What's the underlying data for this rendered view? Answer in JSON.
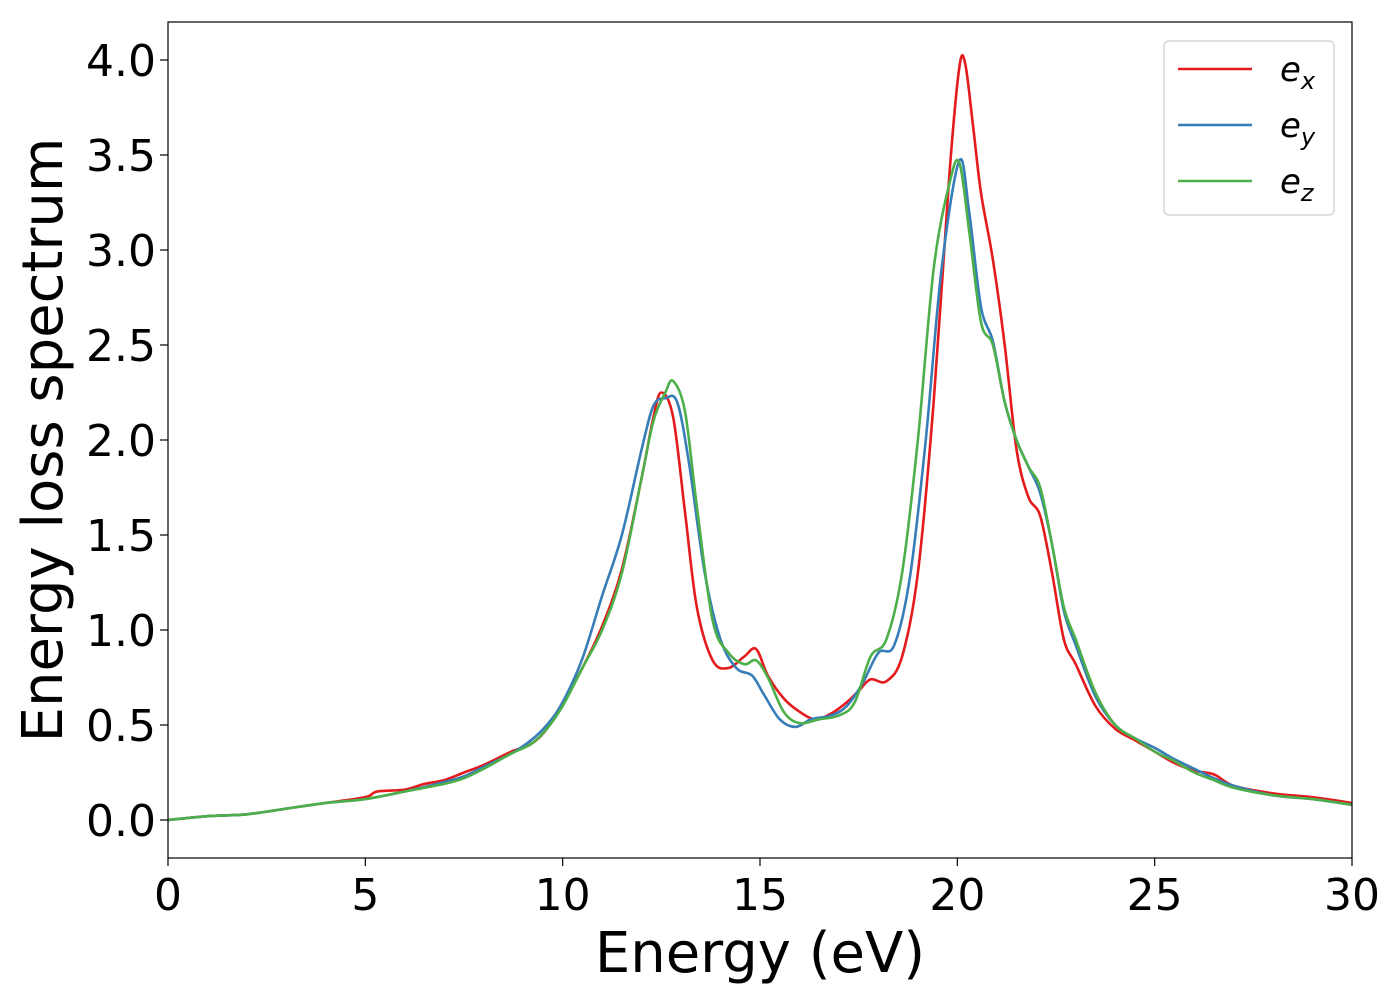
{
  "chart_data": {
    "type": "line",
    "xlabel": "Energy (eV)",
    "ylabel": "Energy loss spectrum",
    "xlim": [
      0,
      30
    ],
    "ylim": [
      -0.2,
      4.2
    ],
    "xticks": [
      0,
      5,
      10,
      15,
      20,
      25,
      30
    ],
    "xtick_labels": [
      "0",
      "5",
      "10",
      "15",
      "20",
      "25",
      "30"
    ],
    "yticks": [
      0,
      0.5,
      1,
      1.5,
      2,
      2.5,
      3,
      3.5,
      4
    ],
    "ytick_labels": [
      "0.0",
      "0.5",
      "1.0",
      "1.5",
      "2.0",
      "2.5",
      "3.0",
      "3.5",
      "4.0"
    ],
    "grid": false,
    "legend_position": "top-right",
    "series": [
      {
        "name": "e_x",
        "label_base": "e",
        "label_sub": "x",
        "color": "#e41a1c",
        "x": [
          0,
          1,
          2,
          3,
          4,
          5,
          5.3,
          6,
          6.5,
          7,
          7.5,
          8,
          8.7,
          9.2,
          9.6,
          10,
          10.5,
          11,
          11.5,
          12,
          12.3,
          12.5,
          12.8,
          13.1,
          13.4,
          13.8,
          14.2,
          14.6,
          14.9,
          15.2,
          15.6,
          16,
          16.4,
          16.8,
          17.2,
          17.5,
          17.8,
          18.2,
          18.6,
          19,
          19.4,
          19.8,
          20.05,
          20.2,
          20.4,
          20.6,
          20.9,
          21.2,
          21.5,
          21.8,
          22.1,
          22.4,
          22.7,
          23,
          23.5,
          24,
          24.5,
          25,
          25.5,
          26,
          26.5,
          27,
          28,
          29,
          30
        ],
        "y": [
          0,
          0.02,
          0.03,
          0.06,
          0.09,
          0.12,
          0.15,
          0.16,
          0.19,
          0.21,
          0.25,
          0.29,
          0.36,
          0.4,
          0.48,
          0.62,
          0.8,
          1.02,
          1.32,
          1.8,
          2.12,
          2.25,
          2.12,
          1.62,
          1.12,
          0.84,
          0.8,
          0.86,
          0.9,
          0.76,
          0.64,
          0.57,
          0.53,
          0.56,
          0.62,
          0.68,
          0.74,
          0.73,
          0.86,
          1.3,
          2.2,
          3.4,
          3.96,
          3.98,
          3.65,
          3.3,
          2.95,
          2.5,
          1.95,
          1.7,
          1.6,
          1.3,
          0.95,
          0.82,
          0.6,
          0.48,
          0.42,
          0.36,
          0.3,
          0.26,
          0.24,
          0.18,
          0.14,
          0.12,
          0.09
        ]
      },
      {
        "name": "e_y",
        "label_base": "e",
        "label_sub": "y",
        "color": "#377eb8",
        "x": [
          0,
          1,
          2,
          3,
          4,
          5,
          6,
          7,
          7.5,
          8,
          8.7,
          9.2,
          9.6,
          10,
          10.5,
          11,
          11.5,
          12,
          12.3,
          12.6,
          12.9,
          13.2,
          13.6,
          14,
          14.4,
          14.8,
          15.1,
          15.5,
          15.9,
          16.3,
          16.8,
          17.2,
          17.6,
          18,
          18.4,
          18.8,
          19.2,
          19.6,
          20.05,
          20.3,
          20.6,
          20.9,
          21.2,
          21.5,
          21.8,
          22.1,
          22.4,
          22.7,
          23,
          23.5,
          24,
          24.5,
          25,
          25.5,
          26,
          26.5,
          27,
          28,
          29,
          30
        ],
        "y": [
          0,
          0.02,
          0.03,
          0.06,
          0.09,
          0.11,
          0.15,
          0.2,
          0.23,
          0.28,
          0.35,
          0.42,
          0.5,
          0.62,
          0.85,
          1.18,
          1.5,
          1.95,
          2.18,
          2.22,
          2.2,
          1.88,
          1.3,
          0.95,
          0.8,
          0.76,
          0.66,
          0.53,
          0.49,
          0.53,
          0.55,
          0.6,
          0.72,
          0.88,
          0.92,
          1.28,
          2.0,
          2.9,
          3.47,
          3.2,
          2.7,
          2.52,
          2.2,
          2.0,
          1.86,
          1.72,
          1.45,
          1.1,
          0.92,
          0.65,
          0.5,
          0.43,
          0.38,
          0.32,
          0.27,
          0.22,
          0.18,
          0.13,
          0.11,
          0.08
        ]
      },
      {
        "name": "e_z",
        "label_base": "e",
        "label_sub": "z",
        "color": "#4daf4a",
        "x": [
          0,
          1,
          2,
          3,
          4,
          5,
          6,
          7,
          7.5,
          8,
          8.7,
          9.2,
          9.6,
          10,
          10.5,
          11,
          11.5,
          12,
          12.3,
          12.6,
          12.8,
          13.1,
          13.4,
          13.8,
          14.2,
          14.6,
          14.9,
          15.2,
          15.6,
          16,
          16.5,
          17,
          17.4,
          17.8,
          18.2,
          18.6,
          19,
          19.4,
          19.8,
          20.05,
          20.3,
          20.6,
          20.9,
          21.2,
          21.5,
          21.8,
          22.1,
          22.4,
          22.7,
          23,
          23.5,
          24,
          24.5,
          25,
          25.5,
          26,
          26.5,
          27,
          28,
          29,
          30
        ],
        "y": [
          0,
          0.02,
          0.03,
          0.06,
          0.09,
          0.11,
          0.15,
          0.19,
          0.22,
          0.27,
          0.35,
          0.4,
          0.48,
          0.6,
          0.8,
          1.0,
          1.3,
          1.8,
          2.1,
          2.25,
          2.31,
          2.15,
          1.65,
          1.05,
          0.88,
          0.82,
          0.84,
          0.75,
          0.57,
          0.51,
          0.53,
          0.55,
          0.62,
          0.86,
          0.95,
          1.3,
          2.0,
          2.9,
          3.35,
          3.46,
          3.1,
          2.62,
          2.5,
          2.2,
          2.0,
          1.86,
          1.75,
          1.45,
          1.12,
          0.95,
          0.67,
          0.5,
          0.43,
          0.36,
          0.31,
          0.25,
          0.21,
          0.17,
          0.13,
          0.11,
          0.08
        ]
      }
    ]
  }
}
